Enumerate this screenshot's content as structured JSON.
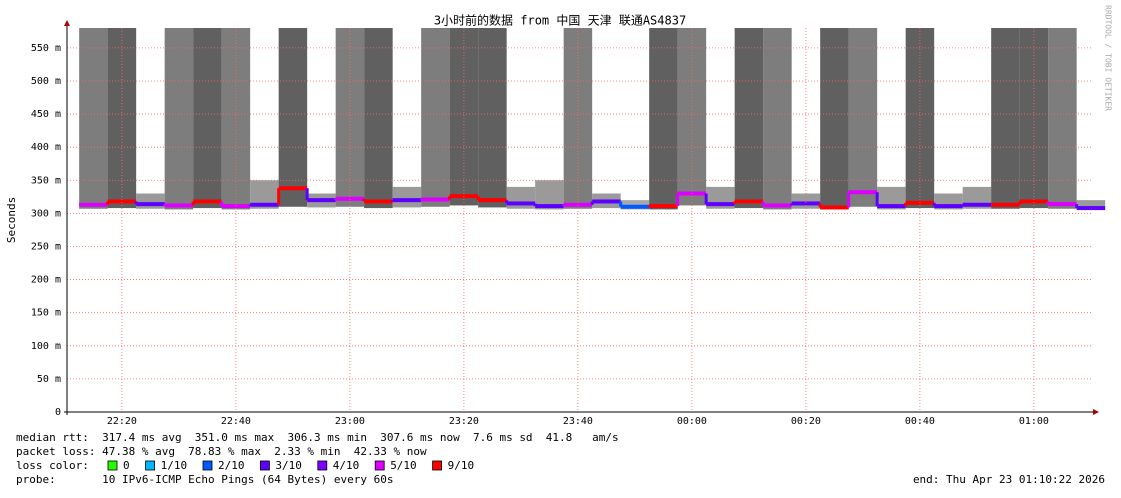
{
  "chart_data": {
    "type": "line",
    "title": "3小时前的数据 from 中国 天津 联通AS4837",
    "y_label": "Seconds",
    "watermark": "RRDTOOL / TOBI OETIKER",
    "x": [
      "22:15",
      "22:20",
      "22:25",
      "22:30",
      "22:35",
      "22:40",
      "22:45",
      "22:50",
      "22:55",
      "23:00",
      "23:05",
      "23:10",
      "23:15",
      "23:20",
      "23:25",
      "23:30",
      "23:35",
      "23:40",
      "23:45",
      "23:50",
      "23:55",
      "00:00",
      "00:05",
      "00:10",
      "00:15",
      "00:20",
      "00:25",
      "00:30",
      "00:35",
      "00:40",
      "00:45",
      "00:50",
      "00:55",
      "01:00",
      "01:05",
      "01:10"
    ],
    "values": [
      0.313,
      0.318,
      0.314,
      0.312,
      0.318,
      0.311,
      0.313,
      0.338,
      0.32,
      0.322,
      0.318,
      0.32,
      0.321,
      0.326,
      0.32,
      0.315,
      0.311,
      0.313,
      0.318,
      0.31,
      0.311,
      0.33,
      0.314,
      0.318,
      0.312,
      0.315,
      0.309,
      0.332,
      0.311,
      0.316,
      0.311,
      0.313,
      0.313,
      0.318,
      0.314,
      0.308
    ],
    "max": [
      0.58,
      0.58,
      0.33,
      0.58,
      0.58,
      0.58,
      0.35,
      0.58,
      0.33,
      0.58,
      0.58,
      0.34,
      0.58,
      0.58,
      0.58,
      0.34,
      0.35,
      0.58,
      0.33,
      0.32,
      0.58,
      0.58,
      0.34,
      0.58,
      0.58,
      0.33,
      0.58,
      0.58,
      0.34,
      0.58,
      0.33,
      0.34,
      0.58,
      0.58,
      0.58,
      0.32
    ],
    "min": [
      0.307,
      0.308,
      0.307,
      0.306,
      0.308,
      0.306,
      0.307,
      0.31,
      0.309,
      0.31,
      0.308,
      0.309,
      0.31,
      0.312,
      0.309,
      0.307,
      0.306,
      0.307,
      0.308,
      0.306,
      0.306,
      0.312,
      0.307,
      0.308,
      0.306,
      0.307,
      0.306,
      0.31,
      0.306,
      0.308,
      0.306,
      0.307,
      0.307,
      0.308,
      0.307,
      0.306
    ],
    "loss": [
      5,
      9,
      3,
      5,
      9,
      5,
      3,
      9,
      3,
      5,
      9,
      3,
      5,
      9,
      9,
      3,
      3,
      5,
      3,
      2,
      9,
      5,
      3,
      9,
      5,
      3,
      9,
      5,
      3,
      9,
      3,
      3,
      9,
      9,
      5,
      3
    ],
    "xlim": [
      "22:10:22",
      "01:10:22"
    ],
    "xticks": [
      "22:20",
      "22:40",
      "23:00",
      "23:20",
      "23:40",
      "00:00",
      "00:20",
      "00:40",
      "01:00"
    ],
    "ylim": [
      0,
      0.58
    ],
    "yticks": [
      0,
      {
        "value": 0.05,
        "label": "50 m"
      },
      {
        "value": 0.1,
        "label": "100 m"
      },
      {
        "value": 0.15,
        "label": "150 m"
      },
      {
        "value": 0.2,
        "label": "200 m"
      },
      {
        "value": 0.25,
        "label": "250 m"
      },
      {
        "value": 0.3,
        "label": "300 m"
      },
      {
        "value": 0.35,
        "label": "350 m"
      },
      {
        "value": 0.4,
        "label": "400 m"
      },
      {
        "value": 0.45,
        "label": "450 m"
      },
      {
        "value": 0.5,
        "label": "500 m"
      },
      {
        "value": 0.55,
        "label": "550 m"
      }
    ],
    "grid": true,
    "legend_title": "loss color:",
    "legend": [
      {
        "name": "0",
        "color": "#26ff00"
      },
      {
        "name": "1/10",
        "color": "#00b8ff"
      },
      {
        "name": "2/10",
        "color": "#0059ff"
      },
      {
        "name": "3/10",
        "color": "#5e00ff"
      },
      {
        "name": "4/10",
        "color": "#7e00ff"
      },
      {
        "name": "5/10",
        "color": "#dd00ff"
      },
      {
        "name": "9/10",
        "color": "#ff0000"
      }
    ],
    "stats": {
      "median": "median rtt:  317.4 ms avg  351.0 ms max  306.3 ms min  307.6 ms now  7.6 ms sd  41.8   am/s",
      "loss": "packet loss: 47.38 % avg  78.83 % max  2.33 % min  42.33 % now",
      "probe": "probe:       10 IPv6-ICMP Echo Pings (64 Bytes) every 60s",
      "end": "end: Thu Apr 23 01:10:22 2026"
    }
  }
}
